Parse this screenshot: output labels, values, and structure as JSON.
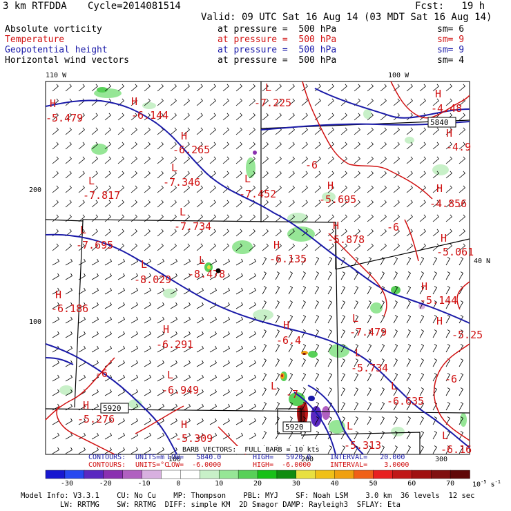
{
  "header": {
    "model": "3 km RTFDDA",
    "cycle": "Cycle=2014081514",
    "fcst": "Fcst:   19 h",
    "valid": "Valid: 09 UTC Sat 16 Aug 14 (03 MDT Sat 16 Aug 14)"
  },
  "fields": [
    {
      "name": "Absolute vorticity",
      "pressure": "at pressure =  500 hPa",
      "sm": "sm= 6",
      "color": "#000000"
    },
    {
      "name": "Temperature",
      "pressure": "at pressure =  500 hPa",
      "sm": "sm= 9",
      "color": "#d01010"
    },
    {
      "name": "Geopotential height",
      "pressure": "at pressure =  500 hPa",
      "sm": "sm= 9",
      "color": "#1a1aa8"
    },
    {
      "name": "Horizontal wind vectors",
      "pressure": "at pressure =  500 hPa",
      "sm": "sm= 4",
      "color": "#000000"
    }
  ],
  "axes": {
    "lon_110": "110 W",
    "lon_100": "100 W",
    "lat_40": "40 N",
    "y200": "200",
    "y100": "100",
    "x100": "100",
    "x200": "200",
    "x300": "300"
  },
  "map_labels": {
    "H": [
      "H",
      "H",
      "H",
      "H",
      "H",
      "H",
      "H",
      "H",
      "H",
      "H",
      "H",
      "H",
      "H",
      "H",
      "H",
      "H",
      "H"
    ],
    "L": [
      "L",
      "L",
      "L",
      "L",
      "L",
      "L",
      "L",
      "L",
      "L",
      "L",
      "L",
      "L",
      "L",
      "L",
      "L"
    ],
    "values": [
      "-5.479",
      "-6.144",
      "-6.265",
      "-7.346",
      "-7.817",
      "-7.734",
      "-7.452",
      "-7.225",
      "-6",
      "-5.695",
      "-4.48",
      "-4.9",
      "-4.856",
      "-5.878",
      "-6",
      "-5.061",
      "-7.695",
      "-6.135",
      "-8.029",
      "-8.478",
      "-6.186",
      "-5.144",
      "-5.25",
      "-7.479",
      "-6.291",
      "-6.4",
      "-5.734",
      "-6.949",
      "-6",
      "-6.635",
      "-5.276",
      "-5.309",
      "-5.313",
      "-6.16",
      "-6",
      "-7"
    ],
    "height_boxes": [
      "5840",
      "5920",
      "5920"
    ]
  },
  "contour_info": {
    "line1_label": "CONTOURS:",
    "line1_units": "UNITS=m",
    "line1_low": "LOW=   5840.0",
    "line1_high": "HIGH=   5920.0",
    "line1_interval": "INTERVAL=   20.000",
    "line2_label": "CONTOURS:",
    "line2_units": "UNITS=°C",
    "line2_low": "LOW=  -6.0000",
    "line2_high": "HIGH=  -6.0000",
    "line2_interval": "INTERVAL=    3.0000",
    "barb": "BARB VECTORS:  FULL BARB = 10 kts"
  },
  "colorbar": {
    "ticks": [
      "-30",
      "-20",
      "-10",
      "0",
      "10",
      "20",
      "30",
      "40",
      "50",
      "60",
      "70"
    ],
    "units": "10",
    "units_exp": "-5",
    "units_suffix": " s",
    "units_suffix_exp": "-1",
    "colors": [
      "#1818d0",
      "#2848f0",
      "#5a28c0",
      "#8a30b0",
      "#b060c0",
      "#d8b0e0",
      "#ffffff",
      "#ffffff",
      "#c8f0c8",
      "#96e696",
      "#58d058",
      "#18c018",
      "#108c10",
      "#e8e040",
      "#f0c018",
      "#f0a010",
      "#f06018",
      "#e82020",
      "#c01818",
      "#a01010",
      "#801010",
      "#600808"
    ]
  },
  "footer": {
    "line1": "Model Info: V3.3.1    CU: No Cu    MP: Thompson    PBL: MYJ    SF: Noah LSM    3.0 km  36 levels  12 sec",
    "line2": "         LW: RRTMG    SW: RRTMG  DIFF: simple KM  2D Smagor DAMP: Rayleigh3  SFLAY: Eta"
  }
}
